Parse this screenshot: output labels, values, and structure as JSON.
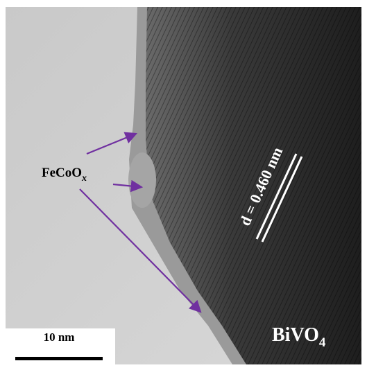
{
  "labels": {
    "particle": {
      "text": "FeCoO",
      "subscript": "x"
    },
    "spacing": "d = 0.460 nm",
    "material": {
      "text": "BiVO",
      "subscript": "4"
    },
    "scale_bar": "10 nm"
  }
}
